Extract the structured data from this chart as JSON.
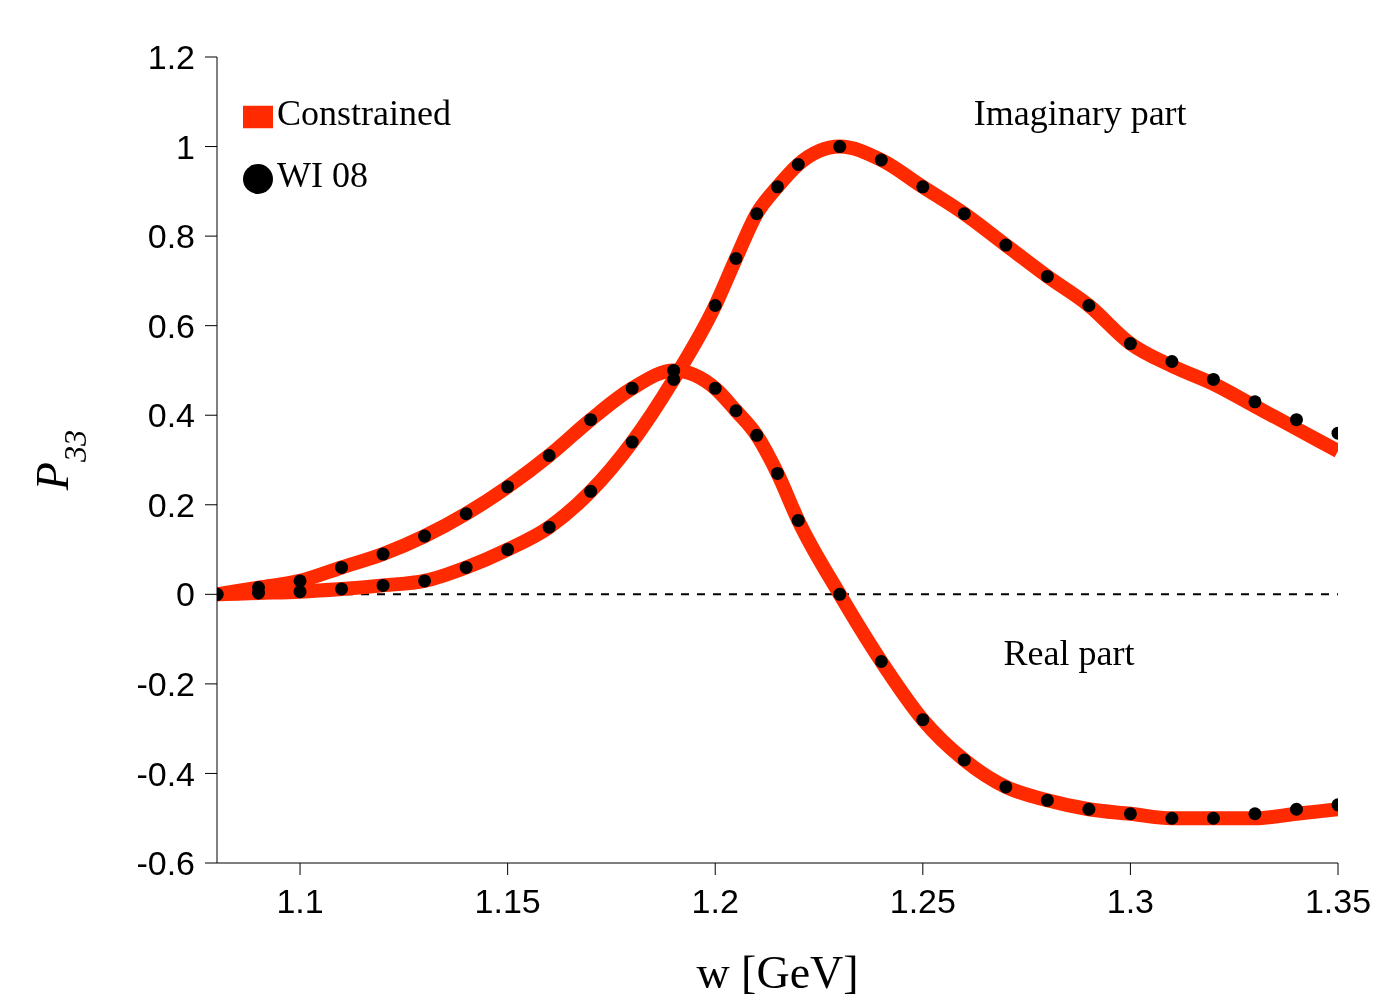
{
  "chart_data": {
    "type": "line",
    "xlabel": "w [GeV]",
    "ylabel": "P$_{33}$",
    "x": [
      1.08,
      1.09,
      1.1,
      1.11,
      1.12,
      1.13,
      1.14,
      1.15,
      1.16,
      1.17,
      1.18,
      1.19,
      1.2,
      1.205,
      1.21,
      1.215,
      1.22,
      1.23,
      1.24,
      1.25,
      1.26,
      1.27,
      1.28,
      1.29,
      1.3,
      1.31,
      1.32,
      1.33,
      1.34,
      1.35
    ],
    "series": [
      {
        "name": "Constrained",
        "color": "#ff2a00",
        "values": [
          0,
          0.003,
          0.006,
          0.012,
          0.02,
          0.03,
          0.06,
          0.1,
          0.15,
          0.23,
          0.34,
          0.48,
          0.645,
          0.75,
          0.85,
          0.91,
          0.96,
          1.0,
          0.97,
          0.91,
          0.85,
          0.78,
          0.71,
          0.645,
          0.56,
          0.51,
          0.47,
          0.42,
          0.37,
          0.32
        ]
      },
      {
        "color": "#ff2a00",
        "values": [
          0,
          0.015,
          0.03,
          0.06,
          0.09,
          0.13,
          0.18,
          0.24,
          0.31,
          0.39,
          0.46,
          0.5,
          0.46,
          0.41,
          0.355,
          0.27,
          0.165,
          0,
          -0.15,
          -0.28,
          -0.37,
          -0.43,
          -0.46,
          -0.48,
          -0.49,
          -0.5,
          -0.5,
          -0.5,
          -0.49,
          -0.48
        ]
      },
      {
        "name": "WI 08",
        "type": "scatter",
        "marker": "circle",
        "color": "#000000",
        "values": [
          0,
          0.003,
          0.006,
          0.012,
          0.02,
          0.03,
          0.06,
          0.1,
          0.15,
          0.23,
          0.34,
          0.48,
          0.645,
          0.75,
          0.85,
          0.91,
          0.96,
          1.0,
          0.97,
          0.91,
          0.85,
          0.78,
          0.71,
          0.645,
          0.56,
          0.52,
          0.48,
          0.43,
          0.39,
          0.36
        ]
      },
      {
        "type": "scatter",
        "marker": "circle",
        "color": "#000000",
        "values": [
          0,
          0.015,
          0.03,
          0.06,
          0.09,
          0.13,
          0.18,
          0.24,
          0.31,
          0.39,
          0.46,
          0.5,
          0.46,
          0.41,
          0.355,
          0.27,
          0.165,
          0,
          -0.15,
          -0.28,
          -0.37,
          -0.43,
          -0.46,
          -0.48,
          -0.49,
          -0.5,
          -0.5,
          -0.49,
          -0.48,
          -0.47
        ]
      }
    ],
    "xlim": [
      1.08,
      1.35
    ],
    "xticks": [
      1.1,
      1.15,
      1.2,
      1.25,
      1.3,
      1.35
    ],
    "ylim": [
      -0.6,
      1.2
    ],
    "yticks": [
      -0.6,
      -0.4,
      -0.2,
      0,
      0.2,
      0.4,
      0.6,
      0.8,
      1,
      1.2
    ],
    "ref_lines": [
      {
        "axis": "y",
        "value": 0,
        "color": "#000000",
        "line_style": "dashed"
      }
    ],
    "annotations": [
      "Imaginary part",
      "Real part"
    ],
    "legend": "top left"
  }
}
